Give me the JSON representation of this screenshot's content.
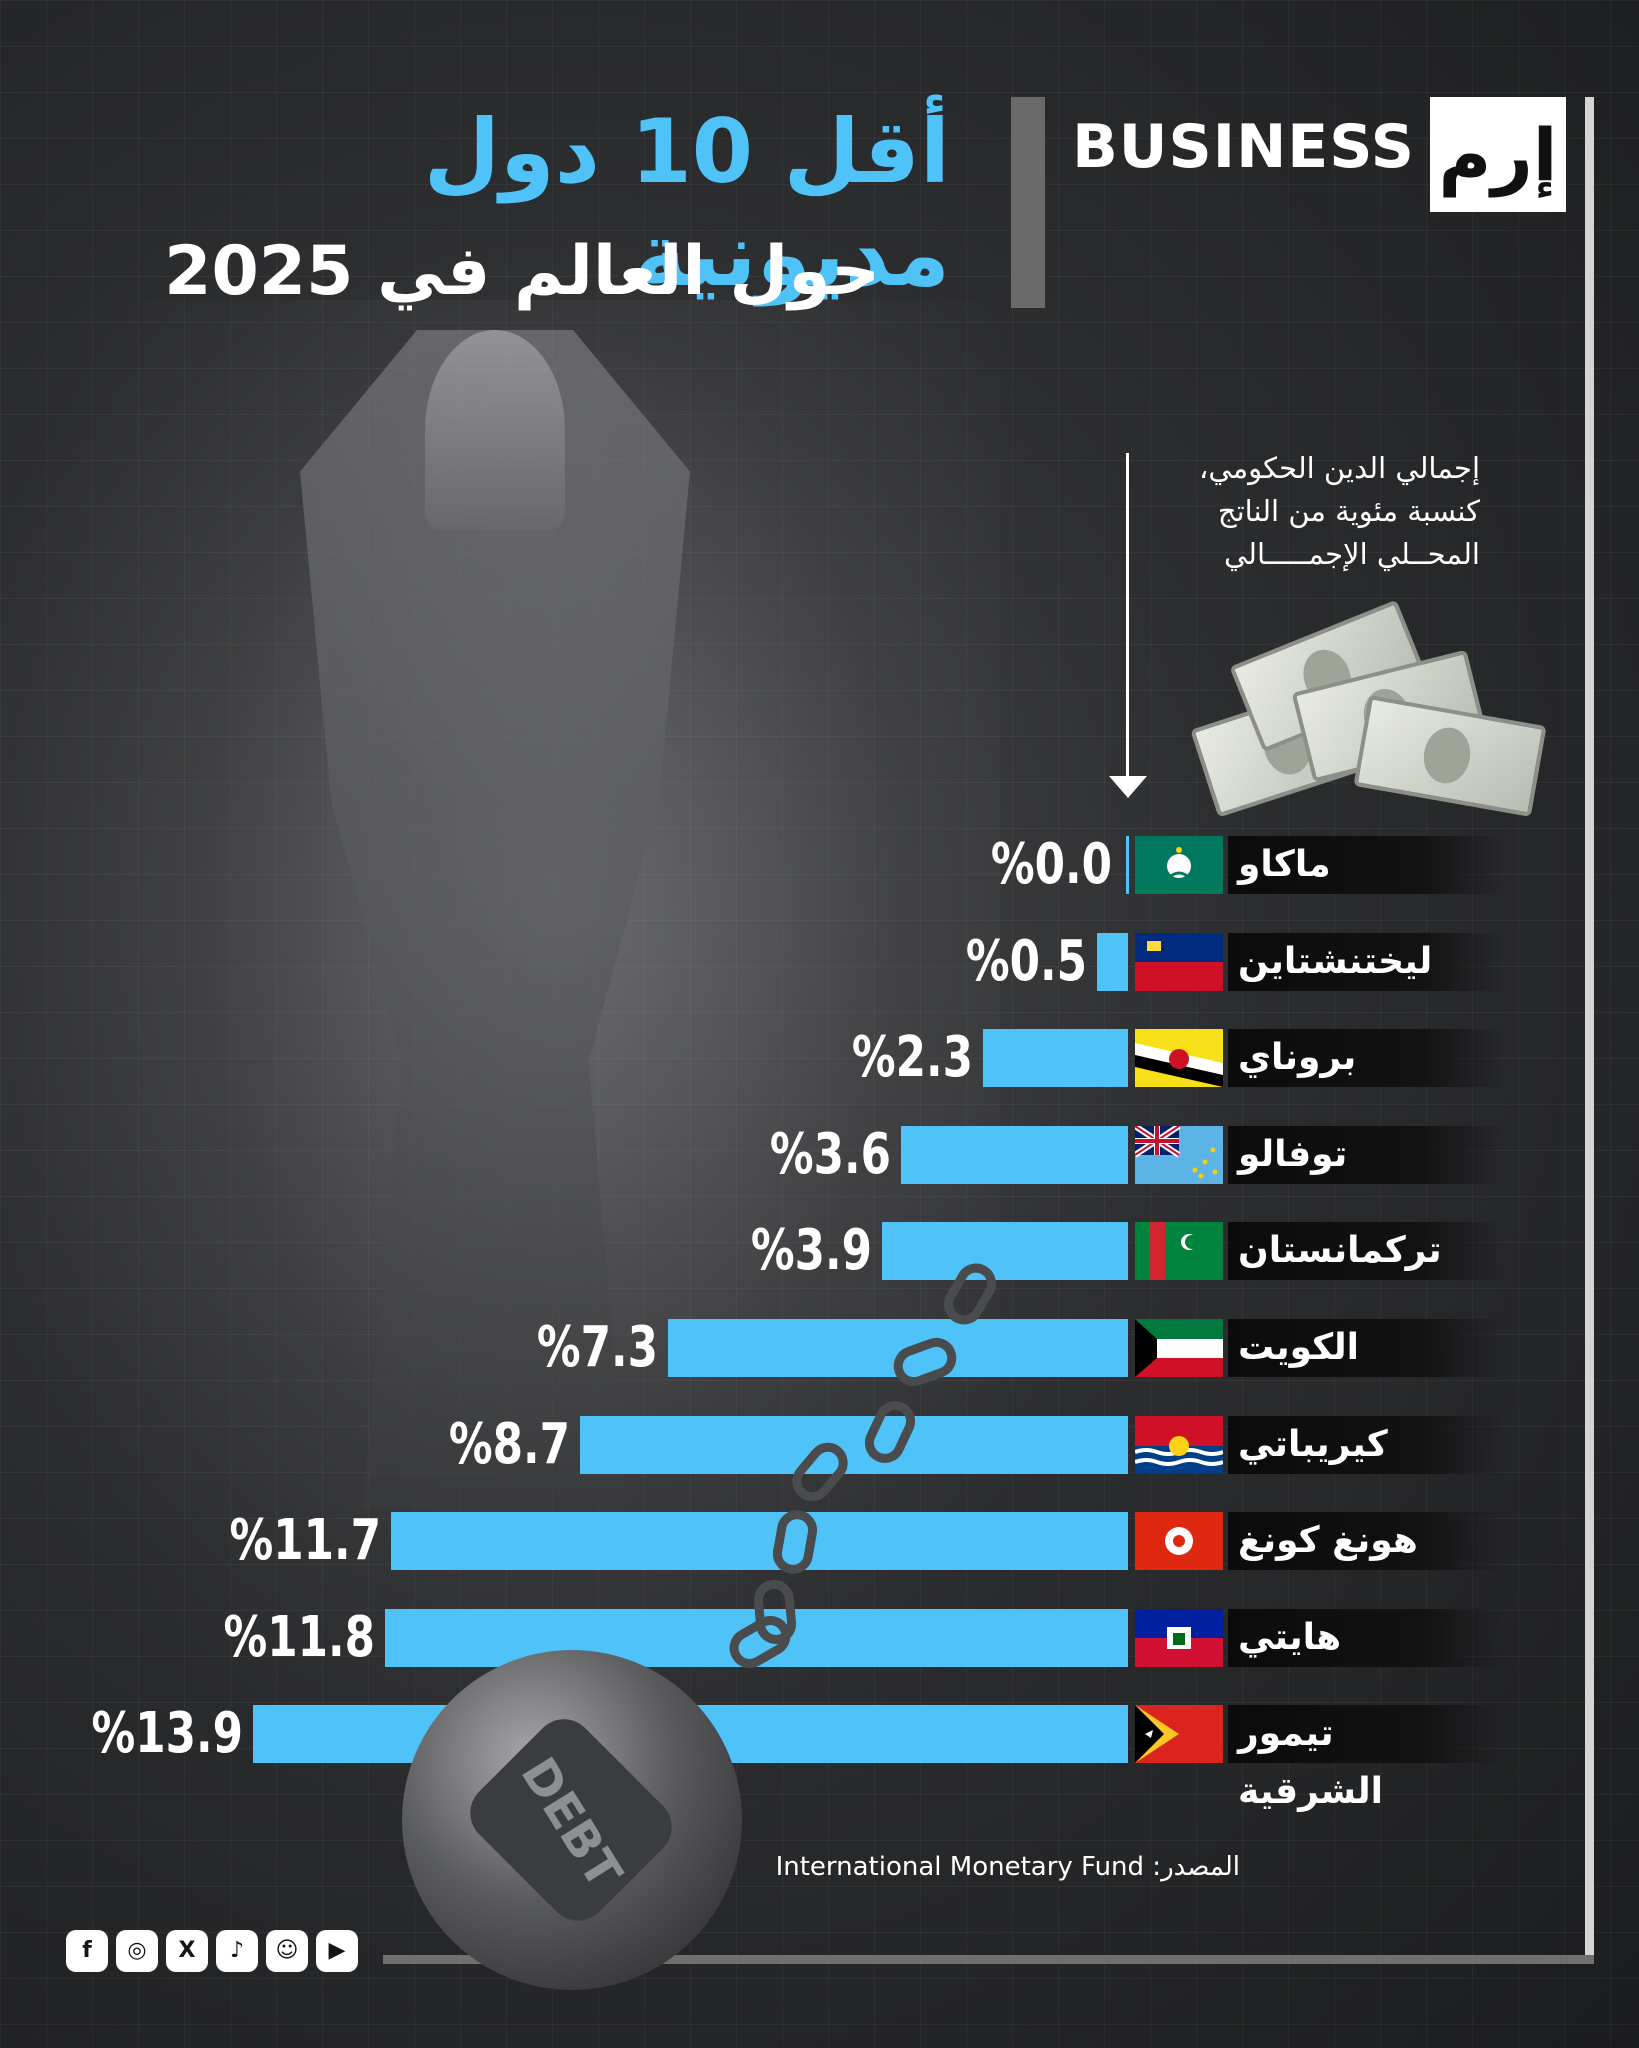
{
  "brand": {
    "logo_mark": "إرم",
    "logo_text": "BUSINESS"
  },
  "title": "أقل 10 دول مديونية",
  "subtitle": "حول العالم في 2025",
  "unit_label": {
    "line1": "إجمالي الدين الحكومي،",
    "line2": "كنسبة مئوية من الناتج",
    "line3": "المحــلي الإجمـــــالي"
  },
  "source": "المصدر: International Monetary Fund",
  "social_icons": [
    "facebook-icon",
    "instagram-icon",
    "x-icon",
    "tiktok-icon",
    "snapchat-icon",
    "youtube-icon"
  ],
  "decoration": {
    "ball_text": "DEBT"
  },
  "colors": {
    "accent": "#4fc3f7",
    "background": "#2c2d2f",
    "text": "#ffffff"
  },
  "chart_data": {
    "type": "bar",
    "orientation": "horizontal",
    "title": "أقل 10 دول مديونية",
    "subtitle": "حول العالم في 2025",
    "categories": [
      "ماكاو",
      "ليختنشتاين",
      "بروناي",
      "توفالو",
      "تركمانستان",
      "الكويت",
      "كيريباتي",
      "هونغ كونغ",
      "هايتي",
      "تيمور الشرقية"
    ],
    "flags": [
      "macau-flag-icon",
      "liechtenstein-flag-icon",
      "brunei-flag-icon",
      "tuvalu-flag-icon",
      "turkmenistan-flag-icon",
      "kuwait-flag-icon",
      "kiribati-flag-icon",
      "hong-kong-flag-icon",
      "haiti-flag-icon",
      "east-timor-flag-icon"
    ],
    "values": [
      0.0,
      0.5,
      2.3,
      3.6,
      3.9,
      7.3,
      8.7,
      11.7,
      11.8,
      13.9
    ],
    "value_labels": [
      "%0.0",
      "%0.5",
      "%2.3",
      "%3.6",
      "%3.9",
      "%7.3",
      "%8.7",
      "%11.7",
      "%11.8",
      "%13.9"
    ],
    "xlim": [
      0,
      13.9
    ],
    "grid": false,
    "legend": "none"
  }
}
